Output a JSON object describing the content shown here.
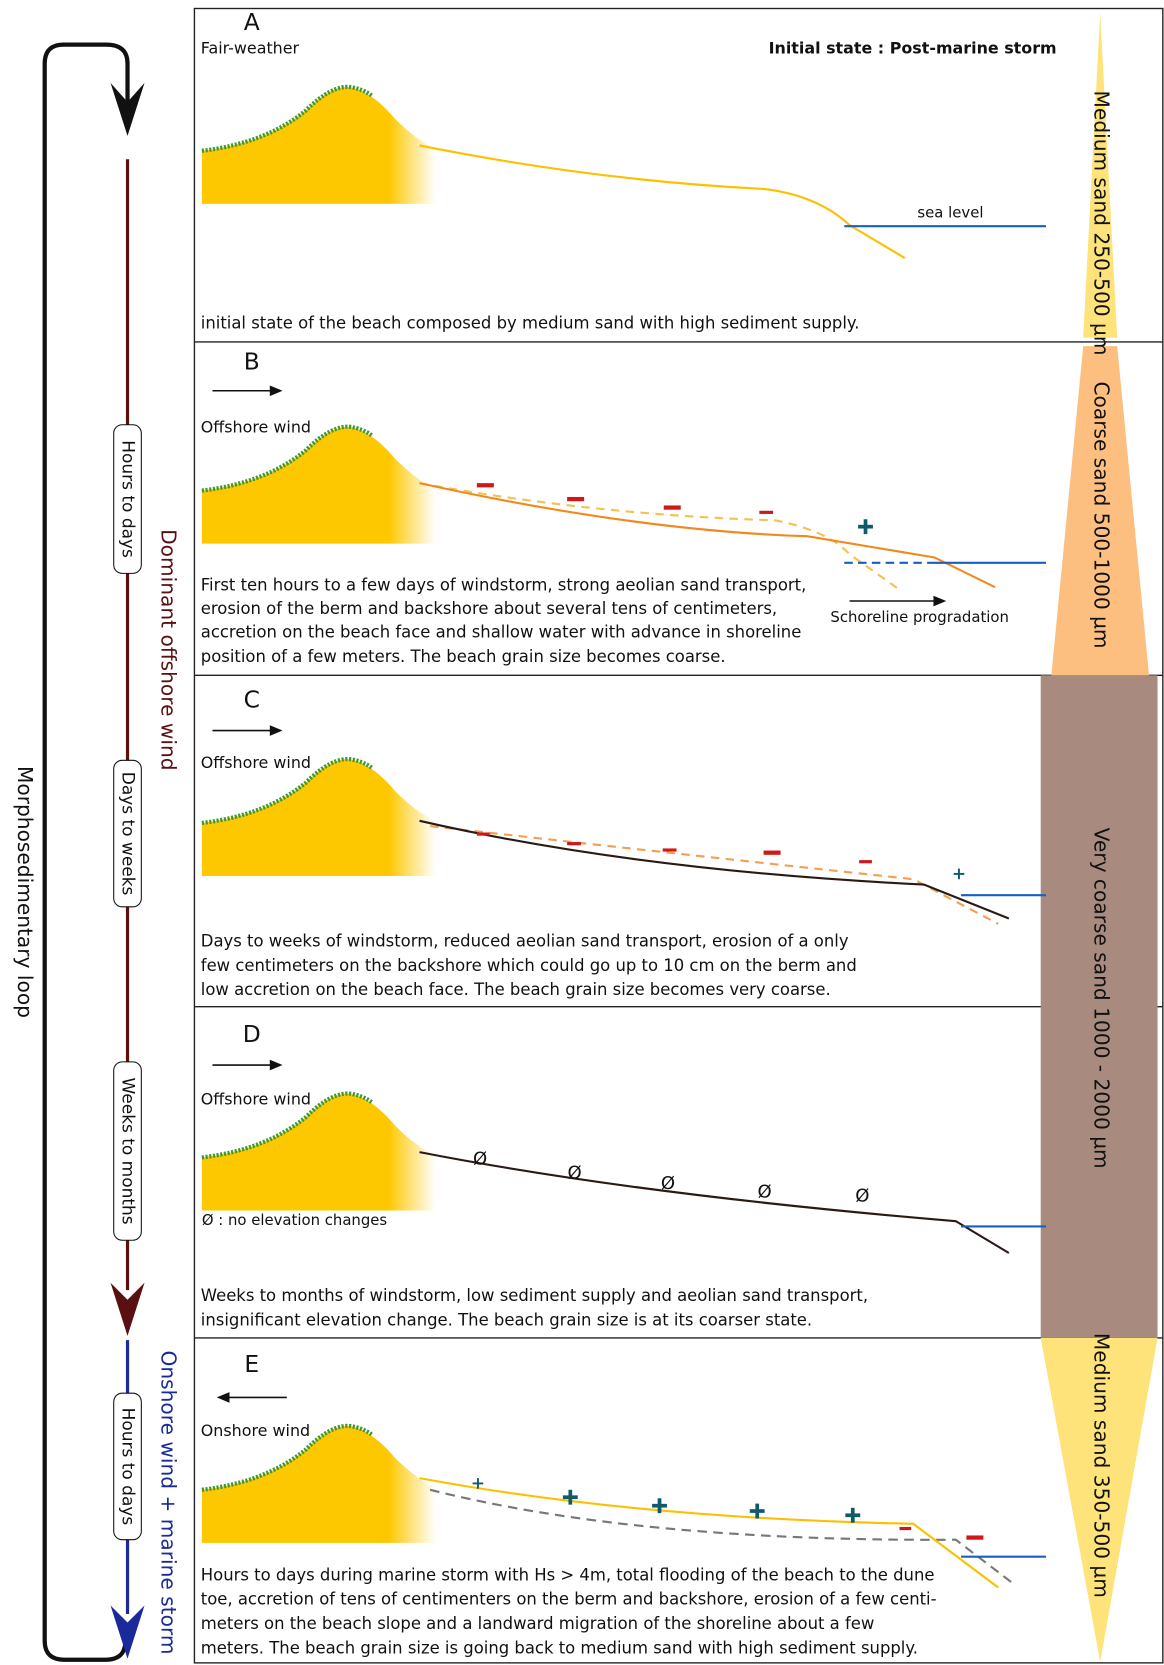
{
  "panels": [
    {
      "label": "A",
      "tag": "Fair-weather",
      "state": "Initial state : Post-marine storm",
      "sea_level": "sea level",
      "description": [
        "initial state of the beach composed by medium sand with high sediment supply."
      ]
    },
    {
      "label": "B",
      "tag": "Offshore wind",
      "note": "Schoreline progradation",
      "description": [
        "First ten hours to a few days of windstorm, strong aeolian sand transport,",
        "erosion of the berm and backshore about several tens of centimeters,",
        "accretion on the beach face and shallow water with advance in shoreline",
        "position of a few meters. The beach grain size becomes coarse."
      ]
    },
    {
      "label": "C",
      "tag": "Offshore wind",
      "description": [
        "Days to weeks of windstorm, reduced aeolian sand transport, erosion of a only",
        "few centimeters on the backshore which could go up to 10 cm on the berm and",
        "low accretion on the beach face. The beach grain size becomes very coarse."
      ]
    },
    {
      "label": "D",
      "tag": "Offshore wind",
      "legend": "Ø : no elevation changes",
      "markers": [
        "Ø",
        "Ø",
        "Ø",
        "Ø",
        "Ø"
      ],
      "description": [
        "Weeks to months of windstorm, low sediment supply and aeolian sand transport,",
        "insignificant elevation change. The beach grain size is at its coarser state."
      ]
    },
    {
      "label": "E",
      "tag": "Onshore wind",
      "description": [
        "Hours to days during marine storm with Hs > 4m, total flooding of the beach to the dune",
        "toe, accretion of tens of centimenters on the berm and backshore, erosion of a few centi-",
        "meters on the beach slope and  a landward migration of the shoreline about a few",
        "meters. The beach grain size is going back to medium sand with high sediment supply."
      ]
    }
  ],
  "timeline": {
    "loop": "Morphosedimentary loop",
    "phases": [
      "Dominant offshore wind",
      "Onshore wind + marine storm"
    ],
    "durations": [
      "Hours to days",
      "Days to weeks",
      "Weeks to months",
      "Hours to days"
    ]
  },
  "grain_sizes": [
    "Medium sand 250-500 µm",
    "Coarse sand 500-1000 µm",
    "Very coarse sand 1000 - 2000 µm",
    "Medium sand 350-500 µm"
  ]
}
